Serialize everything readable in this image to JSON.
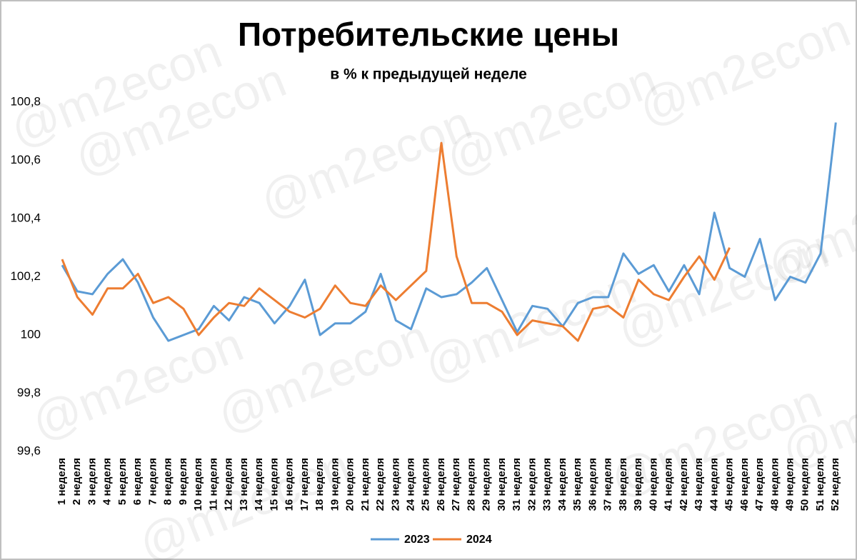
{
  "chart_data": {
    "type": "line",
    "title": "Потребительские цены",
    "subtitle": "в % к предыдущей неделе",
    "watermark": "@m2econ",
    "categories": [
      "1 неделя",
      "2 неделя",
      "3 неделя",
      "4 неделя",
      "5 неделя",
      "6 неделя",
      "7 неделя",
      "8 неделя",
      "9 неделя",
      "10 неделя",
      "11 неделя",
      "12 неделя",
      "13 неделя",
      "14 неделя",
      "15 неделя",
      "16 неделя",
      "17 неделя",
      "18 неделя",
      "19 неделя",
      "20 неделя",
      "21 неделя",
      "22 неделя",
      "23 неделя",
      "24 неделя",
      "25 неделя",
      "26 неделя",
      "27 неделя",
      "28 неделя",
      "29 неделя",
      "30 неделя",
      "31 неделя",
      "32 неделя",
      "33 неделя",
      "34 неделя",
      "35 неделя",
      "36 неделя",
      "37 неделя",
      "38 неделя",
      "39 неделя",
      "40 неделя",
      "41 неделя",
      "42 неделя",
      "43 неделя",
      "44 неделя",
      "45 неделя",
      "46 неделя",
      "47 неделя",
      "48 неделя",
      "49 неделя",
      "50 неделя",
      "51 неделя",
      "52 неделя"
    ],
    "series": [
      {
        "name": "2023",
        "color": "#5b9bd5",
        "values": [
          100.24,
          100.15,
          100.14,
          100.21,
          100.26,
          100.18,
          100.06,
          99.98,
          100.0,
          100.02,
          100.1,
          100.05,
          100.13,
          100.11,
          100.04,
          100.1,
          100.19,
          100.0,
          100.04,
          100.04,
          100.08,
          100.21,
          100.05,
          100.02,
          100.16,
          100.13,
          100.14,
          100.18,
          100.23,
          100.12,
          100.01,
          100.1,
          100.09,
          100.03,
          100.11,
          100.13,
          100.13,
          100.28,
          100.21,
          100.24,
          100.15,
          100.24,
          100.14,
          100.42,
          100.23,
          100.2,
          100.33,
          100.12,
          100.2,
          100.18,
          100.28,
          100.73
        ]
      },
      {
        "name": "2024",
        "color": "#ed7d31",
        "values": [
          100.26,
          100.13,
          100.07,
          100.16,
          100.16,
          100.21,
          100.11,
          100.13,
          100.09,
          100.0,
          100.06,
          100.11,
          100.1,
          100.16,
          100.12,
          100.08,
          100.06,
          100.09,
          100.17,
          100.11,
          100.1,
          100.17,
          100.12,
          100.17,
          100.22,
          100.66,
          100.27,
          100.11,
          100.11,
          100.08,
          100.0,
          100.05,
          100.04,
          100.03,
          99.98,
          100.09,
          100.1,
          100.06,
          100.19,
          100.14,
          100.12,
          100.2,
          100.27,
          100.19,
          100.3,
          null,
          null,
          null,
          null,
          null,
          null,
          null
        ]
      }
    ],
    "ylim": [
      99.6,
      100.8
    ],
    "yticks": [
      {
        "value": 99.6,
        "label": "99,6"
      },
      {
        "value": 99.8,
        "label": "99,8"
      },
      100,
      {
        "value": 100.2,
        "label": "100,2"
      },
      {
        "value": 100.4,
        "label": "100,4"
      },
      {
        "value": 100.6,
        "label": "100,6"
      },
      {
        "value": 100.8,
        "label": "100,8"
      }
    ],
    "grid": false,
    "legend": "bottom"
  }
}
